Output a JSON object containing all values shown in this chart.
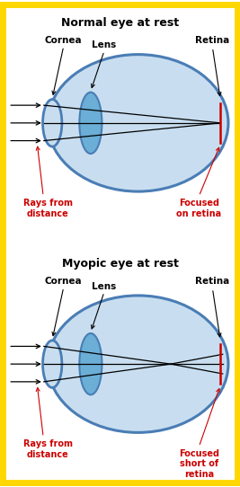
{
  "background_color": "#FFFFFF",
  "border_color": "#FFD700",
  "eye_color": "#4A7DB5",
  "eye_fill": "#C8DEF0",
  "lens_color": "#4A7DB5",
  "lens_fill": "#6BAED6",
  "ray_color": "#000000",
  "focus_line_color": "#CC0000",
  "label_color_black": "#000000",
  "label_color_red": "#CC0000",
  "title1": "Normal eye at rest",
  "title2": "Myopic eye at rest",
  "label_cornea": "Cornea",
  "label_lens": "Lens",
  "label_retina": "Retina",
  "label_rays": "Rays from\ndistance",
  "label_focused_normal": "Focused\non retina",
  "label_focused_myopic": "Focused\nshort of\nretina"
}
